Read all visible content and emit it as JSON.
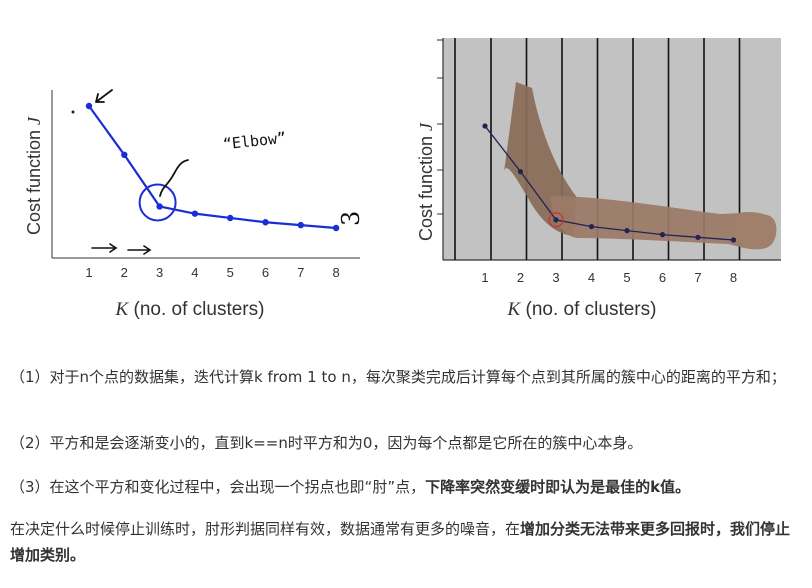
{
  "chart_data": [
    {
      "type": "line",
      "x": [
        1,
        2,
        3,
        4,
        5,
        6,
        7,
        8
      ],
      "series": [
        {
          "values": [
            10.0,
            6.6,
            3.0,
            2.5,
            2.2,
            1.9,
            1.7,
            1.5
          ]
        }
      ],
      "xticks": [
        "1",
        "2",
        "3",
        "4",
        "5",
        "6",
        "7",
        "8"
      ],
      "xlabel_main": "K",
      "xlabel_rest": " (no. of clusters)",
      "ylabel_main": "Cost function ",
      "ylabel_j": "J",
      "annotation": "“Elbow”",
      "annotation_side": "3",
      "elbow_x": 3,
      "line_color": "#1a2ed6",
      "grid": false
    },
    {
      "type": "line",
      "x": [
        1,
        2,
        3,
        4,
        5,
        6,
        7,
        8
      ],
      "series": [
        {
          "values": [
            10.0,
            6.6,
            3.0,
            2.5,
            2.2,
            1.9,
            1.7,
            1.5
          ]
        }
      ],
      "xticks": [
        "1",
        "2",
        "3",
        "4",
        "5",
        "6",
        "7",
        "8"
      ],
      "xlabel_main": "K",
      "xlabel_rest": " (no. of clusters)",
      "ylabel_main": "Cost function ",
      "ylabel_j": "J",
      "elbow_x": 3,
      "background": "#c2c2c2",
      "line_color": "#222255",
      "marker_color": "#cc3333",
      "grid": true
    }
  ],
  "text": {
    "p1": "（1）对于n个点的数据集，迭代计算k from 1 to n，每次聚类完成后计算每个点到其所属的簇中心的距离的平方和；",
    "p2": "（2）平方和是会逐渐变小的，直到k==n时平方和为0，因为每个点都是它所在的簇中心本身。",
    "p3_normal": "（3）在这个平方和变化过程中，会出现一个拐点也即“肘”点，",
    "p3_bold": "下降率突然变缓时即认为是最佳的k值。",
    "p4_normal": "在决定什么时候停止训练时，肘形判据同样有效，数据通常有更多的噪音，在",
    "p4_bold": "增加分类无法带来更多回报时，我们停止增加类别。"
  }
}
